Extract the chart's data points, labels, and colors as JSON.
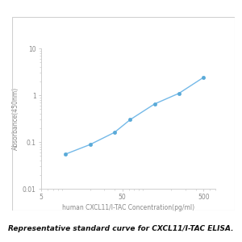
{
  "x_data": [
    10,
    20,
    40,
    62.5,
    125,
    250,
    500
  ],
  "y_data": [
    0.055,
    0.088,
    0.16,
    0.3,
    0.65,
    1.1,
    2.4
  ],
  "line_color": "#74b9e8",
  "marker_color": "#5aaad8",
  "marker_style": "o",
  "marker_size": 3.0,
  "line_width": 1.0,
  "xlabel": "human CXCL11/I-TAC Concentration(pg/ml)",
  "ylabel": "Absorbance(450nm)",
  "xlim": [
    5,
    700
  ],
  "ylim": [
    0.01,
    10
  ],
  "xticks": [
    5,
    50,
    500
  ],
  "xticklabels": [
    "5",
    "50",
    "500"
  ],
  "yticks": [
    0.01,
    0.1,
    1,
    10
  ],
  "yticklabels": [
    "0.01",
    "0.1",
    "1",
    "10"
  ],
  "caption": "Representative standard curve for CXCL11/I-TAC ELISA.",
  "caption_fontsize": 6.5,
  "axis_label_fontsize": 5.5,
  "tick_fontsize": 5.5,
  "background_color": "#ffffff",
  "plot_bg_color": "#ffffff",
  "border_color": "#cccccc",
  "spine_color": "#c8c8c8",
  "tick_color": "#bbbbbb",
  "label_color": "#888888"
}
